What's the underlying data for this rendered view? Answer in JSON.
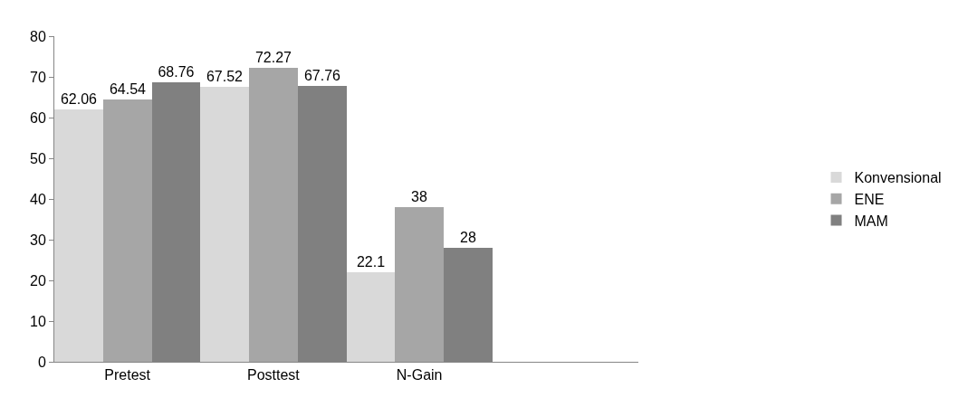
{
  "chart_data": {
    "type": "bar",
    "categories": [
      "Pretest",
      "Posttest",
      "N-Gain",
      null
    ],
    "series": [
      {
        "name": "Konvensional",
        "color": "#d9d9d9",
        "values": [
          62.06,
          67.52,
          22.1,
          null
        ]
      },
      {
        "name": "ENE",
        "color": "#a6a6a6",
        "values": [
          64.54,
          72.27,
          38,
          null
        ]
      },
      {
        "name": "MAM",
        "color": "#808080",
        "values": [
          68.76,
          67.76,
          28,
          null
        ]
      }
    ],
    "ylim": [
      0,
      80
    ],
    "yticks": [
      0,
      10,
      20,
      30,
      40,
      50,
      60,
      70,
      80
    ],
    "data_labels": true,
    "grid": false,
    "legend": "right"
  }
}
